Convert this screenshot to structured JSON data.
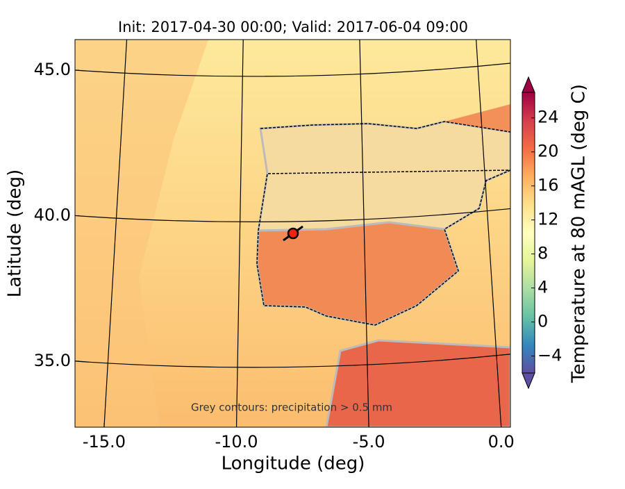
{
  "map": {
    "title": "Init: 2017-04-30 00:00; Valid: 2017-06-04 09:00",
    "xlabel": "Longitude (deg)",
    "ylabel": "Latitude (deg)",
    "annotation": "Grey contours: precipitation > 0.5 mm",
    "xlim": [
      -16.1,
      0.35
    ],
    "xticks": [
      {
        "value": -15,
        "label": "-15.0"
      },
      {
        "value": -10,
        "label": "-10.0"
      },
      {
        "value": -5,
        "label": "-5.0"
      },
      {
        "value": 0,
        "label": "0.0"
      }
    ],
    "ylim": [
      32.73,
      46.05
    ],
    "yticks": [
      {
        "value": 35,
        "label": "35.0"
      },
      {
        "value": 40,
        "label": "40.0"
      },
      {
        "value": 45,
        "label": "45.0"
      }
    ],
    "colorbar": {
      "label": "Temperature at 80 mAGL (deg C)",
      "clim": [
        -6,
        27
      ],
      "ticks": [
        {
          "value": -4,
          "label": "−4"
        },
        0,
        4,
        8,
        12,
        16,
        20,
        24
      ],
      "colors": [
        "#5e4fa2",
        "#3288bd",
        "#66c2a5",
        "#abdda4",
        "#e6f598",
        "#ffffbf",
        "#fee08b",
        "#fdae61",
        "#f46d43",
        "#d53e4f",
        "#9e0142"
      ]
    }
  }
}
